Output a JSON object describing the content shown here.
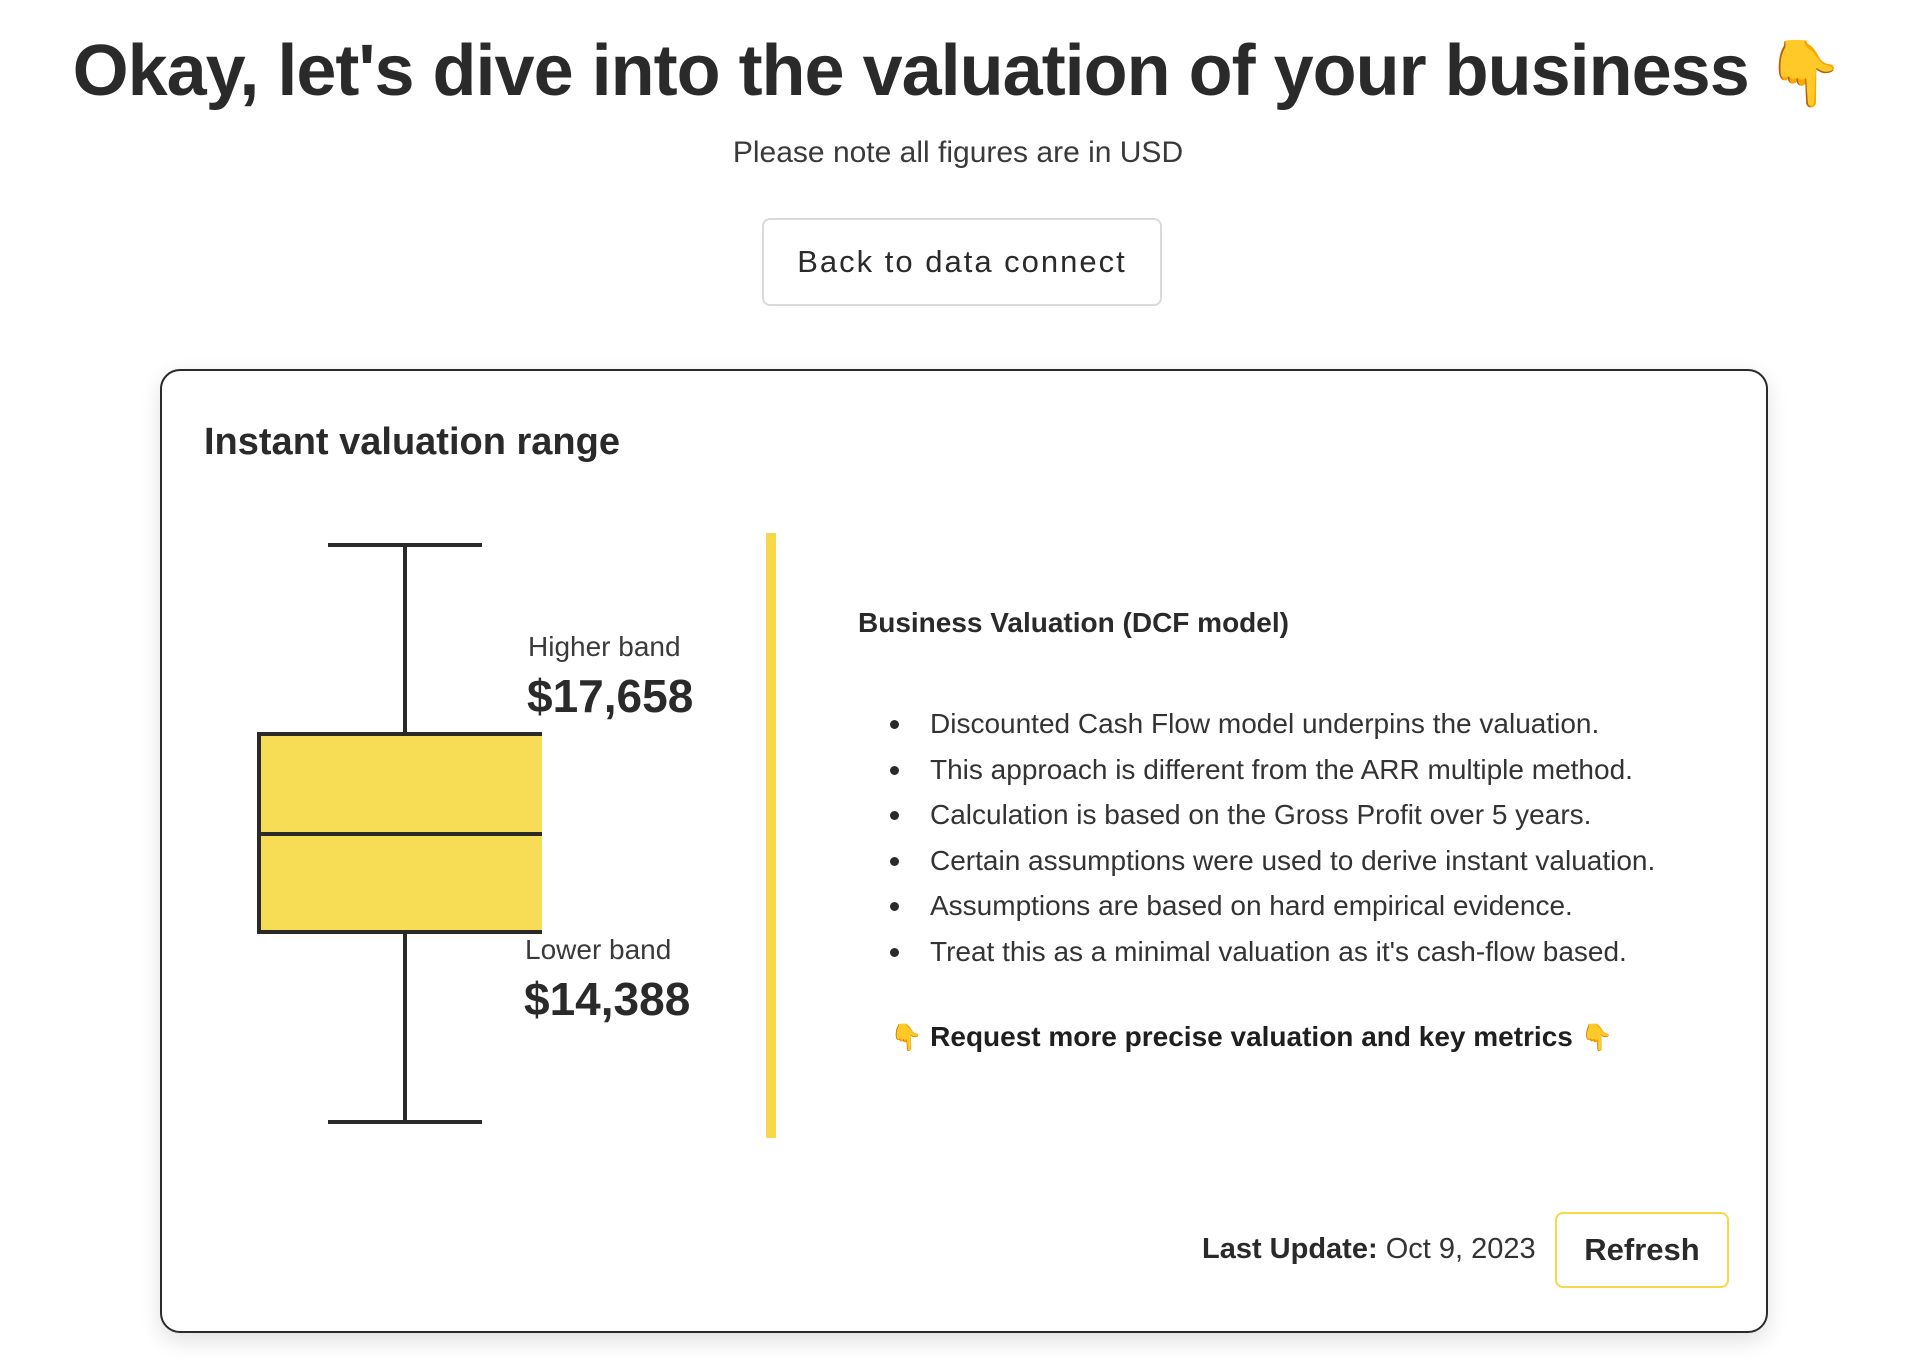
{
  "header": {
    "title": "Okay, let's dive into the valuation of your business",
    "title_icon": "👇",
    "subtitle": "Please note all figures are in USD",
    "back_button_label": "Back to data connect"
  },
  "valuation_card": {
    "title": "Instant valuation range",
    "higher_band_label": "Higher band",
    "higher_band_value": "$17,658",
    "lower_band_label": "Lower band",
    "lower_band_value": "$14,388",
    "box_fill_color": "#f7dc55",
    "divider_color": "#f6d84a",
    "model_title": "Business Valuation (DCF model)",
    "bullets": [
      "Discounted Cash Flow model underpins the valuation.",
      "This approach is different from the ARR multiple method.",
      "Calculation is based on the Gross Profit over 5 years.",
      "Certain assumptions were used to derive instant valuation.",
      "Assumptions are based on hard empirical evidence.",
      "Treat this as a minimal valuation as it's cash-flow based."
    ],
    "request_icon": "👇",
    "request_label": "Request more precise valuation and key metrics",
    "last_update_label": "Last Update:",
    "last_update_value": "Oct 9, 2023",
    "refresh_label": "Refresh"
  }
}
